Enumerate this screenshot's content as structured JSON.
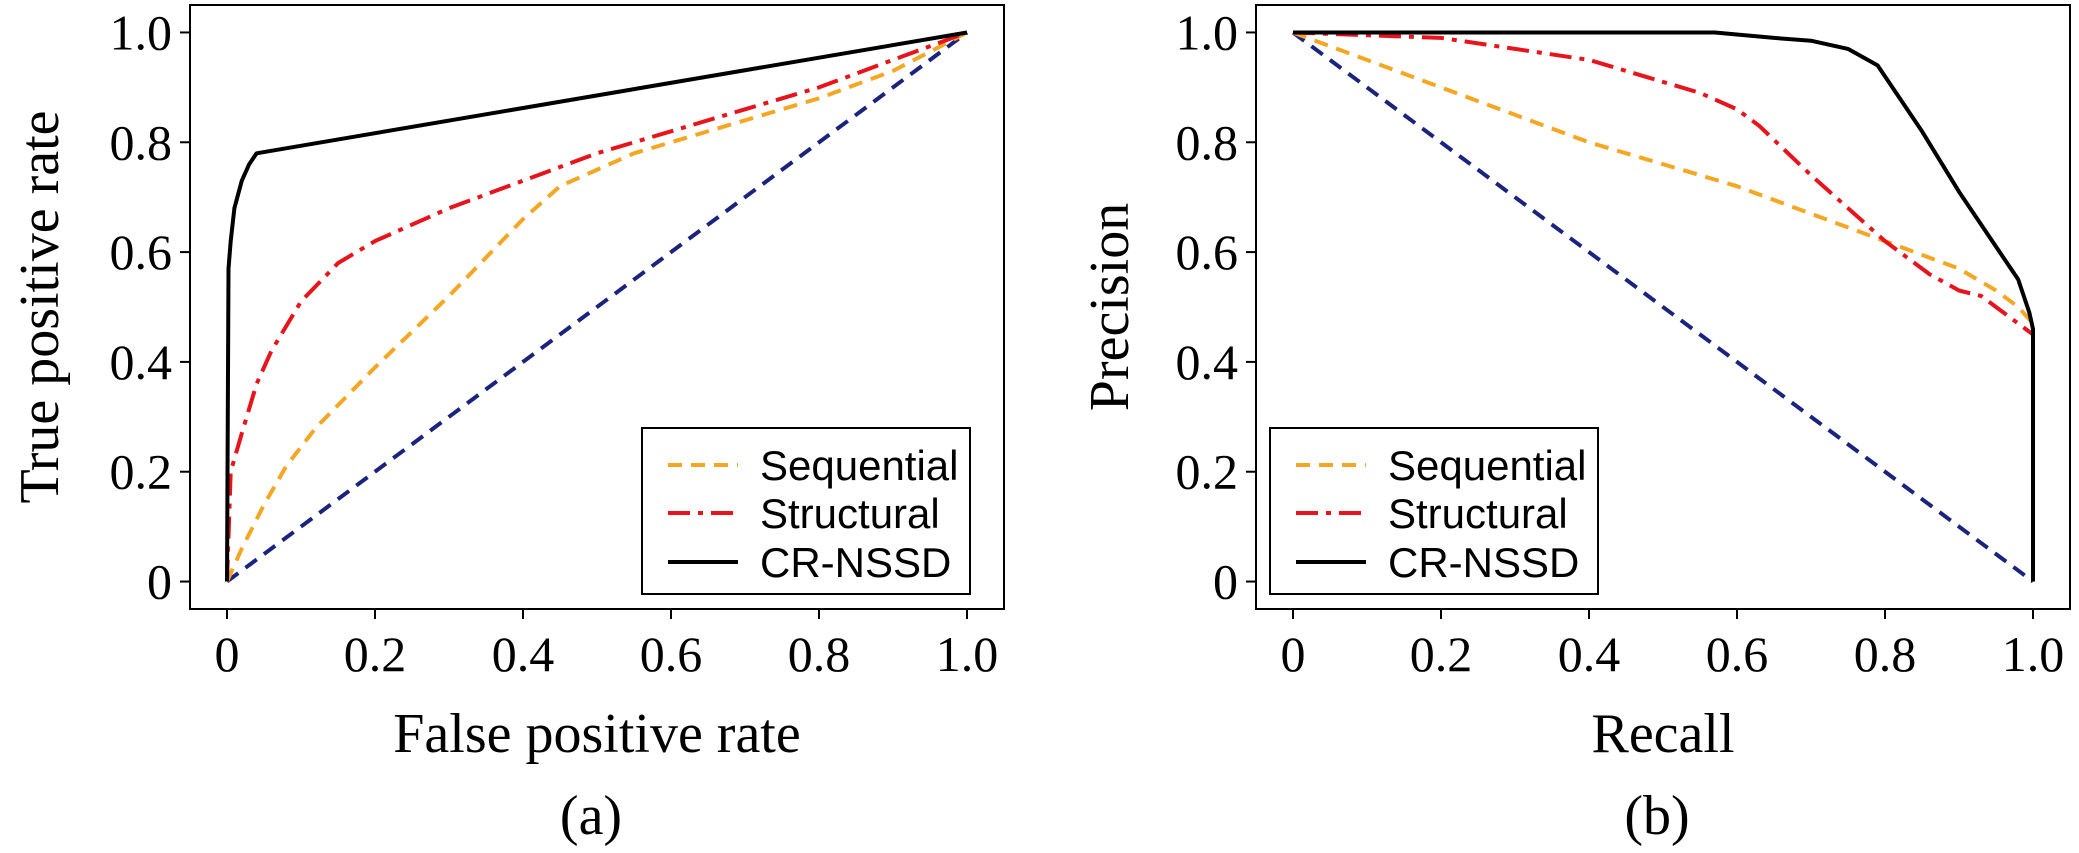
{
  "chart_data": [
    {
      "type": "line",
      "panel": "a",
      "caption": "(a)",
      "xlabel": "False positive rate",
      "ylabel": "True positive rate",
      "xlim": [
        -0.05,
        1.05
      ],
      "ylim": [
        -0.05,
        1.05
      ],
      "xticks": [
        0,
        0.2,
        0.4,
        0.6,
        0.8,
        1.0
      ],
      "xtick_labels": [
        "0",
        "0.2",
        "0.4",
        "0.6",
        "0.8",
        "1.0"
      ],
      "yticks": [
        0,
        0.2,
        0.4,
        0.6,
        0.8,
        1.0
      ],
      "ytick_labels": [
        "0",
        "0.2",
        "0.4",
        "0.6",
        "0.8",
        "1.0"
      ],
      "grid": false,
      "legend_position": "bottom-right",
      "series": [
        {
          "name": "Sequential",
          "color": "#f5a623",
          "dash": "dashed",
          "x": [
            0,
            0.02,
            0.05,
            0.08,
            0.12,
            0.2,
            0.3,
            0.4,
            0.45,
            0.55,
            0.6,
            0.7,
            0.8,
            0.9,
            1.0
          ],
          "y": [
            0,
            0.06,
            0.14,
            0.21,
            0.28,
            0.39,
            0.52,
            0.66,
            0.72,
            0.78,
            0.8,
            0.84,
            0.88,
            0.93,
            1.0
          ]
        },
        {
          "name": "Structural",
          "color": "#e8141c",
          "dash": "dashdot",
          "x": [
            0,
            0.005,
            0.02,
            0.04,
            0.06,
            0.1,
            0.15,
            0.2,
            0.3,
            0.4,
            0.5,
            0.6,
            0.7,
            0.8,
            0.9,
            1.0
          ],
          "y": [
            0,
            0.2,
            0.27,
            0.36,
            0.42,
            0.51,
            0.58,
            0.62,
            0.68,
            0.73,
            0.78,
            0.82,
            0.86,
            0.9,
            0.95,
            1.0
          ]
        },
        {
          "name": "CR-NSSD",
          "color": "#000000",
          "dash": "solid",
          "x": [
            0,
            0.002,
            0.005,
            0.01,
            0.02,
            0.03,
            0.04,
            1.0
          ],
          "y": [
            0,
            0.57,
            0.62,
            0.68,
            0.73,
            0.76,
            0.78,
            1.0
          ]
        },
        {
          "name": "",
          "color": "#1a237e",
          "dash": "dashed",
          "x": [
            0,
            1.0
          ],
          "y": [
            0,
            1.0
          ]
        }
      ]
    },
    {
      "type": "line",
      "panel": "b",
      "caption": "(b)",
      "xlabel": "Recall",
      "ylabel": "Precision",
      "xlim": [
        -0.05,
        1.05
      ],
      "ylim": [
        -0.05,
        1.05
      ],
      "xticks": [
        0,
        0.2,
        0.4,
        0.6,
        0.8,
        1.0
      ],
      "xtick_labels": [
        "0",
        "0.2",
        "0.4",
        "0.6",
        "0.8",
        "1.0"
      ],
      "yticks": [
        0,
        0.2,
        0.4,
        0.6,
        0.8,
        1.0
      ],
      "ytick_labels": [
        "0",
        "0.2",
        "0.4",
        "0.6",
        "0.8",
        "1.0"
      ],
      "grid": false,
      "legend_position": "bottom-left",
      "series": [
        {
          "name": "Sequential",
          "color": "#f5a623",
          "dash": "dashed",
          "x": [
            0,
            0.1,
            0.2,
            0.3,
            0.4,
            0.5,
            0.6,
            0.7,
            0.8,
            0.9,
            0.95,
            0.98,
            1.0
          ],
          "y": [
            1.0,
            0.95,
            0.9,
            0.85,
            0.8,
            0.76,
            0.72,
            0.67,
            0.62,
            0.57,
            0.53,
            0.5,
            0.47
          ]
        },
        {
          "name": "Structural",
          "color": "#e8141c",
          "dash": "dashdot",
          "x": [
            0,
            0.2,
            0.3,
            0.4,
            0.5,
            0.55,
            0.6,
            0.63,
            0.7,
            0.8,
            0.86,
            0.9,
            0.93,
            0.97,
            1.0
          ],
          "y": [
            1.0,
            0.99,
            0.97,
            0.95,
            0.91,
            0.89,
            0.86,
            0.83,
            0.74,
            0.62,
            0.56,
            0.53,
            0.52,
            0.48,
            0.45
          ]
        },
        {
          "name": "CR-NSSD",
          "color": "#000000",
          "dash": "solid",
          "x": [
            0,
            0.57,
            0.65,
            0.7,
            0.75,
            0.79,
            0.85,
            0.9,
            0.95,
            0.98,
            0.995,
            1.0,
            1.0
          ],
          "y": [
            1.0,
            1.0,
            0.99,
            0.985,
            0.97,
            0.94,
            0.82,
            0.71,
            0.61,
            0.55,
            0.49,
            0.46,
            0
          ]
        },
        {
          "name": "",
          "color": "#1a237e",
          "dash": "dashed",
          "x": [
            0,
            1.0
          ],
          "y": [
            1.0,
            0
          ]
        }
      ]
    }
  ]
}
